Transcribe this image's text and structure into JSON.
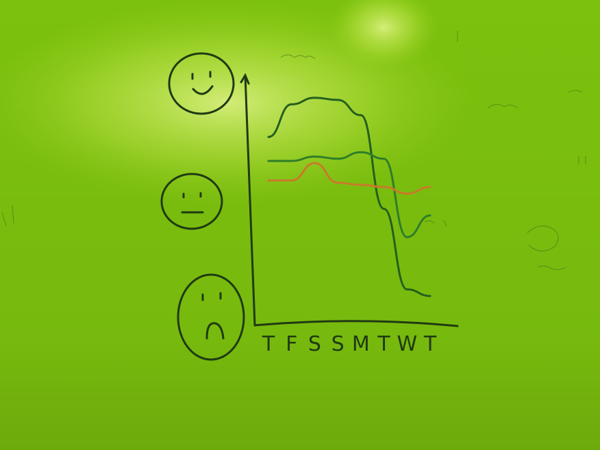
{
  "scene": {
    "subject": "whiteboard-sketch",
    "colors": {
      "board": "#7cc10e",
      "glare": "#d7ef6a",
      "marker_black": "#1f3a12",
      "marker_green": "#2f7d2a",
      "marker_orange": "#c97a2a",
      "marker_dark_green": "#245f1e"
    }
  },
  "chart_data": {
    "type": "line",
    "categories": [
      "T",
      "F",
      "S",
      "S",
      "M",
      "T",
      "W",
      "T"
    ],
    "y_scale_labels": [
      "happy-face",
      "neutral-face",
      "sad-face"
    ],
    "series": [
      {
        "values": [
          0.78,
          0.93,
          0.96,
          0.95,
          0.88,
          0.45,
          0.08,
          0.05
        ]
      },
      {
        "values": [
          0.67,
          0.67,
          0.69,
          0.68,
          0.71,
          0.68,
          0.32,
          0.42
        ]
      },
      {
        "values": [
          0.58,
          0.58,
          0.66,
          0.57,
          0.56,
          0.55,
          0.52,
          0.55
        ]
      }
    ],
    "grid": false
  }
}
